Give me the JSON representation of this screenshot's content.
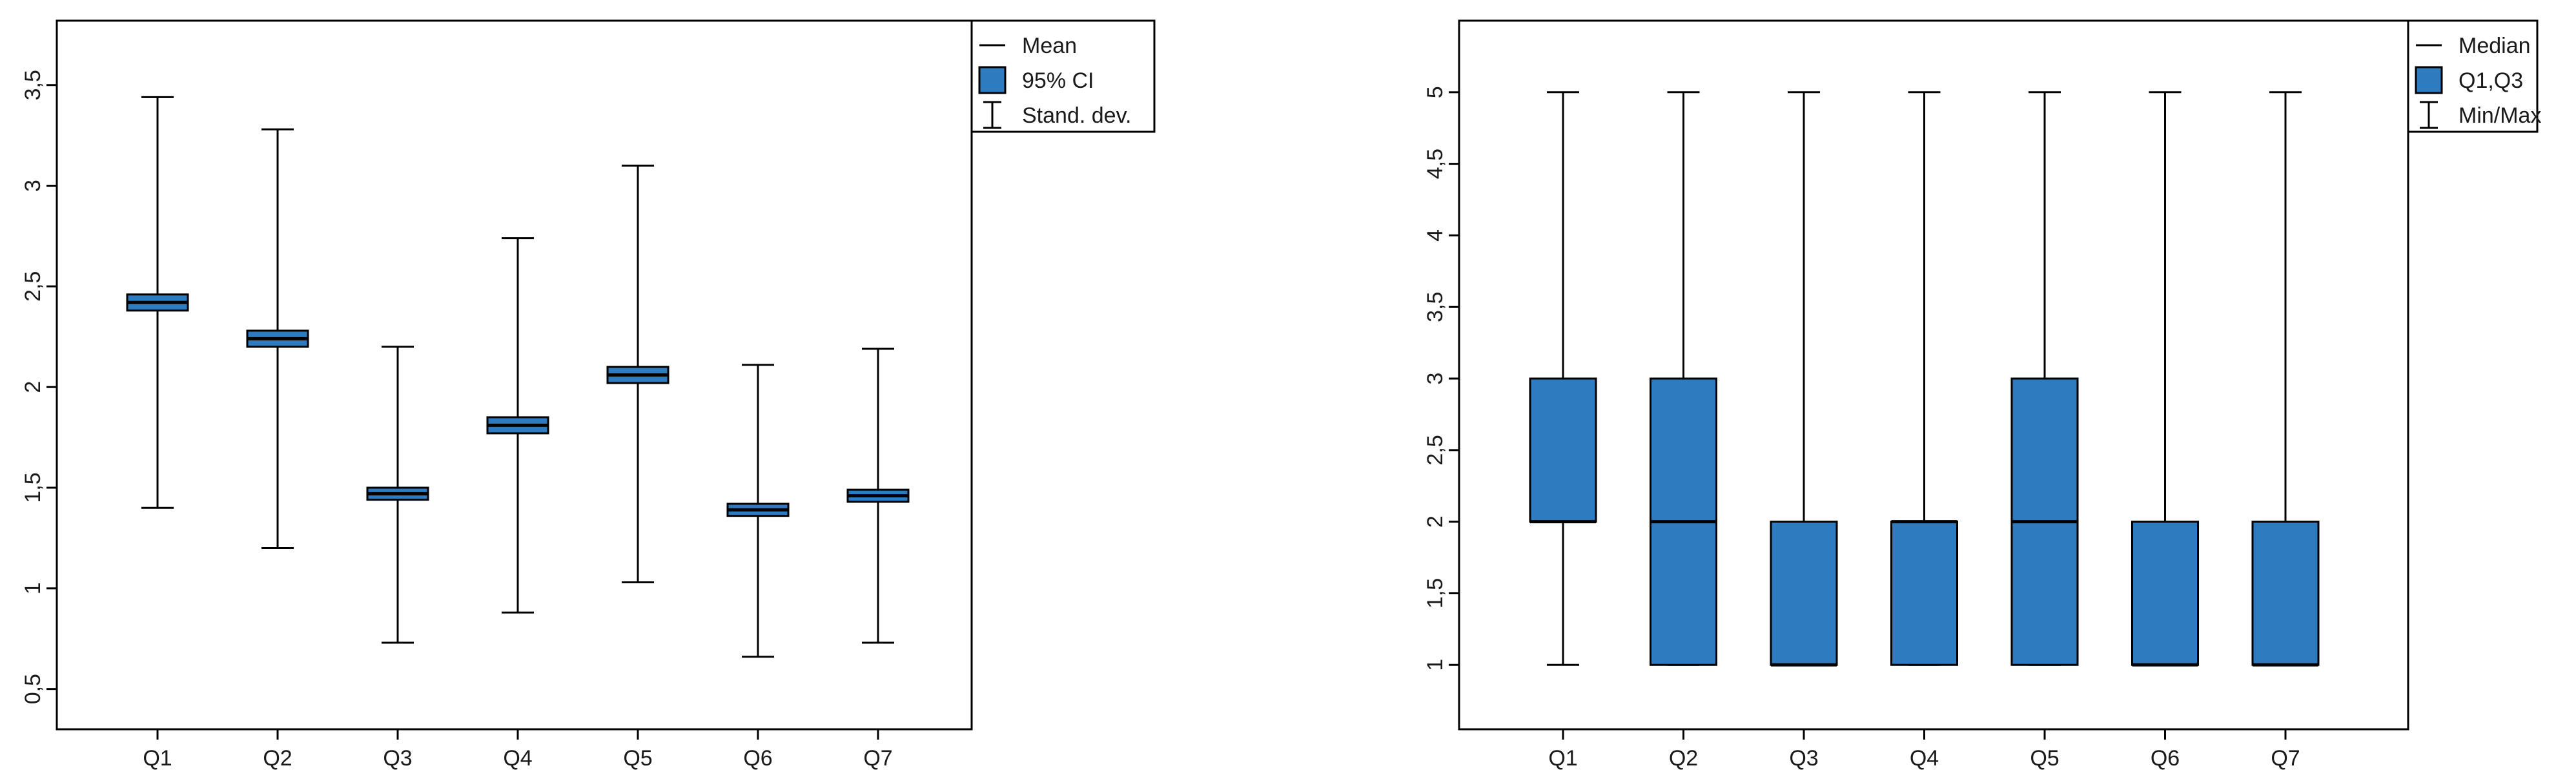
{
  "chart_data": [
    {
      "type": "errorbar",
      "categories": [
        "Q1",
        "Q2",
        "Q3",
        "Q4",
        "Q5",
        "Q6",
        "Q7"
      ],
      "series": [
        {
          "name": "Mean",
          "values": [
            2.42,
            2.24,
            1.47,
            1.81,
            2.06,
            1.39,
            1.46
          ]
        },
        {
          "name": "95% CI",
          "lower": [
            2.38,
            2.2,
            1.44,
            1.77,
            2.02,
            1.36,
            1.43
          ],
          "upper": [
            2.46,
            2.28,
            1.5,
            1.85,
            2.1,
            1.42,
            1.49
          ]
        },
        {
          "name": "Stand. dev.",
          "lower": [
            1.4,
            1.2,
            0.73,
            0.88,
            1.03,
            0.66,
            0.73
          ],
          "upper": [
            3.44,
            3.28,
            2.2,
            2.74,
            3.1,
            2.11,
            2.19
          ]
        }
      ],
      "y_ticks": [
        "0,5",
        "1",
        "1,5",
        "2",
        "2,5",
        "3",
        "3,5"
      ],
      "ylim": [
        0.3,
        3.82
      ],
      "legend": [
        "Mean",
        "95% CI",
        "Stand. dev."
      ],
      "legend_position": "top-right outside",
      "grid": false,
      "box_color": "#2e7bbf"
    },
    {
      "type": "box",
      "categories": [
        "Q1",
        "Q2",
        "Q3",
        "Q4",
        "Q5",
        "Q6",
        "Q7"
      ],
      "series": [
        {
          "name": "Median",
          "values": [
            2,
            2,
            1,
            2,
            2,
            1,
            1
          ]
        },
        {
          "name": "Q1,Q3",
          "q1": [
            2,
            1,
            1,
            1,
            1,
            1,
            1
          ],
          "q3": [
            3,
            3,
            2,
            2,
            3,
            2,
            2
          ]
        },
        {
          "name": "Min/Max",
          "min": [
            1,
            1,
            1,
            1,
            1,
            1,
            1
          ],
          "max": [
            5,
            5,
            5,
            5,
            5,
            5,
            5
          ]
        }
      ],
      "y_ticks": [
        "1",
        "1,5",
        "2",
        "2,5",
        "3",
        "3,5",
        "4",
        "4,5",
        "5"
      ],
      "ylim": [
        0.55,
        5.5
      ],
      "legend": [
        "Median",
        "Q1,Q3",
        "Min/Max"
      ],
      "legend_position": "top-right outside",
      "grid": false,
      "box_color": "#2e7bbf"
    }
  ]
}
